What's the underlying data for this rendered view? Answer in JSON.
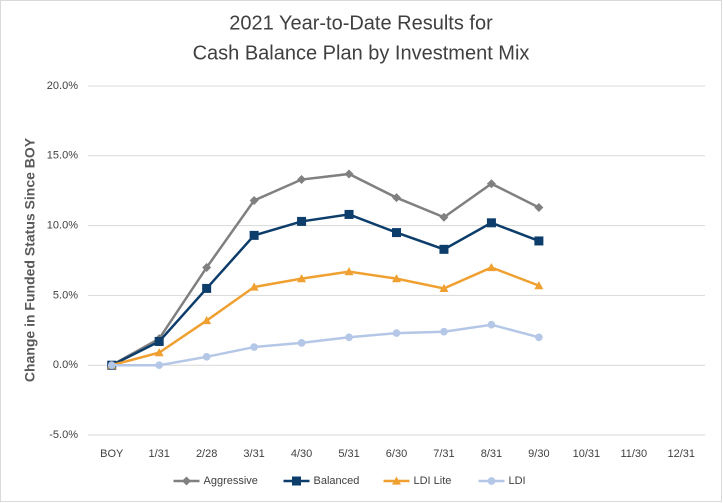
{
  "chart_data": {
    "type": "line",
    "title": [
      "2021 Year-to-Date Results for",
      "Cash Balance Plan by Investment Mix"
    ],
    "y_label": "Change in Funded Status Since BOY",
    "categories": [
      "BOY",
      "1/31",
      "2/28",
      "3/31",
      "4/30",
      "5/31",
      "6/30",
      "7/31",
      "8/31",
      "9/30",
      "10/31",
      "11/30",
      "12/31"
    ],
    "series": [
      {
        "name": "Aggressive",
        "color": "#808080",
        "marker": "diamond",
        "values": [
          0,
          1.9,
          7.0,
          11.8,
          13.3,
          13.7,
          12.0,
          10.6,
          13.0,
          11.3,
          null,
          null,
          null
        ]
      },
      {
        "name": "Balanced",
        "color": "#0d3d6b",
        "marker": "square",
        "values": [
          0,
          1.7,
          5.5,
          9.3,
          10.3,
          10.8,
          9.5,
          8.3,
          10.2,
          8.9,
          null,
          null,
          null
        ]
      },
      {
        "name": "LDI Lite",
        "color": "#f0a030",
        "marker": "triangle",
        "values": [
          0,
          0.9,
          3.2,
          5.6,
          6.2,
          6.7,
          6.2,
          5.5,
          7.0,
          5.7,
          null,
          null,
          null
        ]
      },
      {
        "name": "LDI",
        "color": "#b4c7e7",
        "marker": "circle",
        "values": [
          0,
          0,
          0.6,
          1.3,
          1.6,
          2.0,
          2.3,
          2.4,
          2.9,
          2.0,
          null,
          null,
          null
        ]
      }
    ],
    "ylim": [
      -5,
      20
    ],
    "yticks": [
      {
        "value": -5,
        "label": "-5.0%"
      },
      {
        "value": 0,
        "label": "0.0%"
      },
      {
        "value": 5,
        "label": "5.0%"
      },
      {
        "value": 10,
        "label": "10.0%"
      },
      {
        "value": 15,
        "label": "15.0%"
      },
      {
        "value": 20,
        "label": "20.0%"
      }
    ],
    "grid": true,
    "legend": "bottom"
  }
}
